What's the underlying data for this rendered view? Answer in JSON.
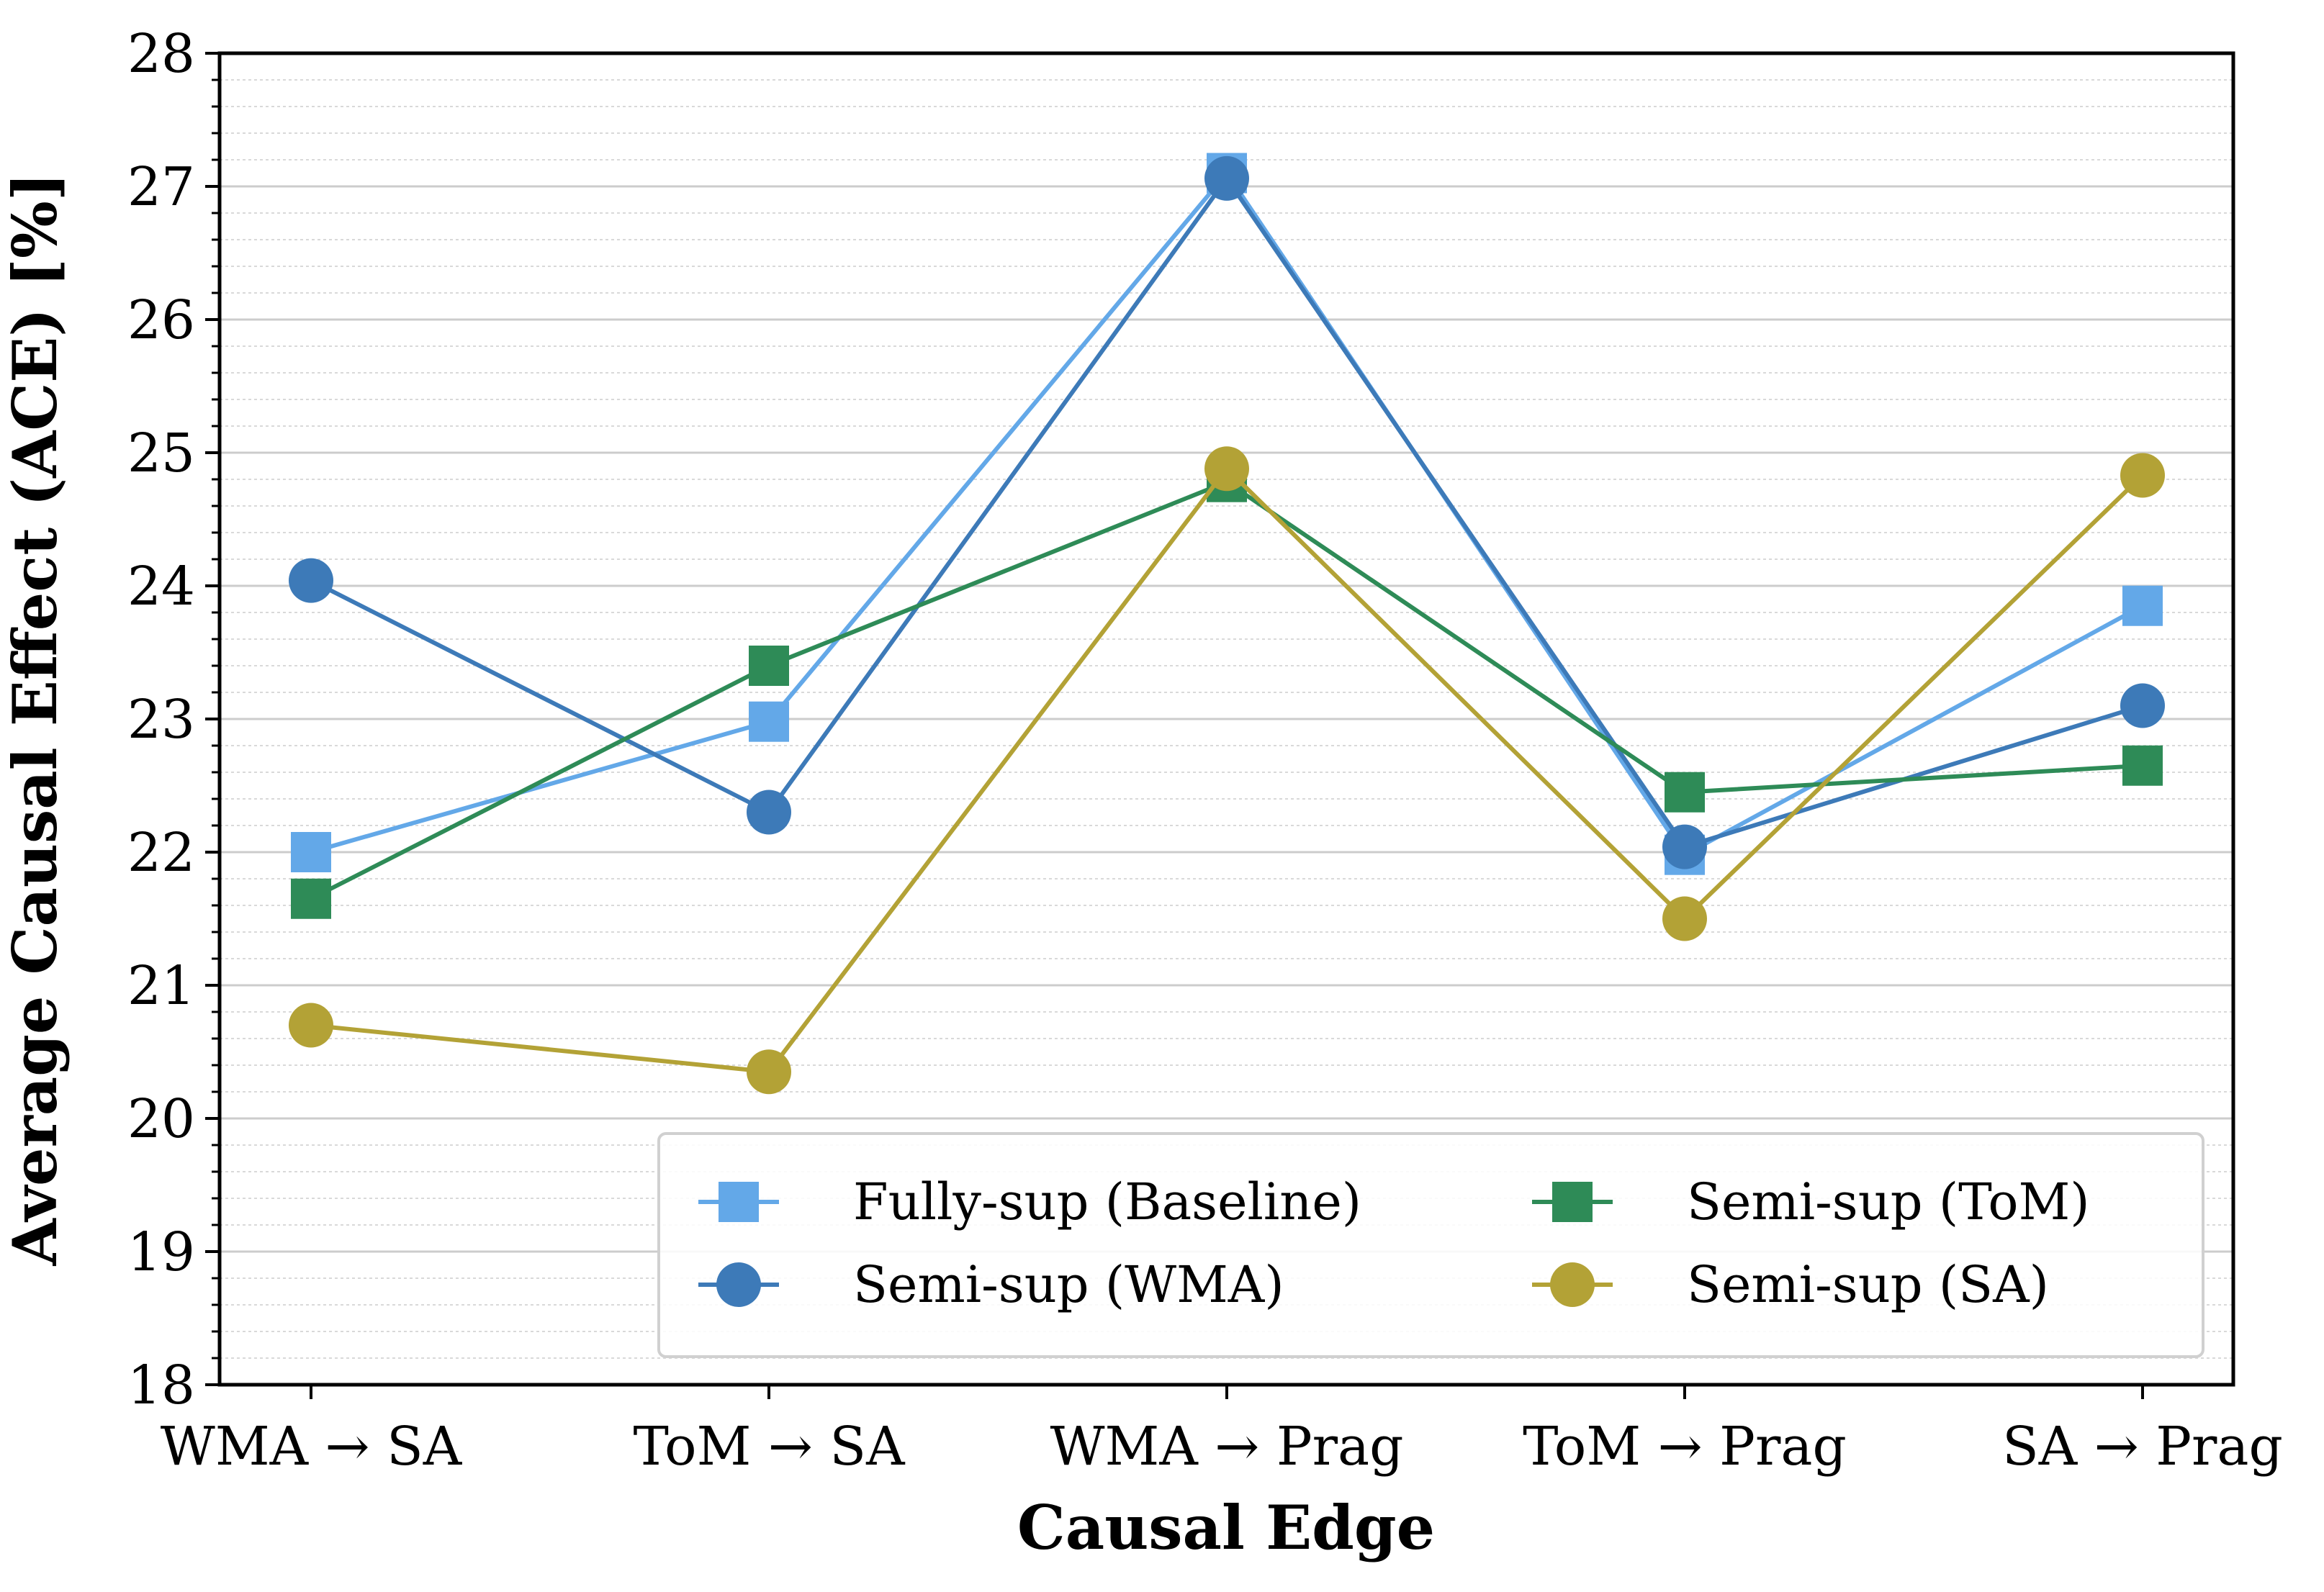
{
  "chart_data": {
    "type": "line",
    "title": "",
    "xlabel": "Causal Edge",
    "ylabel": "Average Causal Effect (ACE) [%]",
    "categories": [
      "WMA → SA",
      "ToM → SA",
      "WMA → Prag",
      "ToM → Prag",
      "SA → Prag"
    ],
    "ylim": [
      18,
      28
    ],
    "yticks": [
      18,
      19,
      20,
      21,
      22,
      23,
      24,
      25,
      26,
      27,
      28
    ],
    "grid": true,
    "legend_position": "lower-right",
    "legend_columns": 2,
    "series": [
      {
        "name": "Fully-sup (Baseline)",
        "marker": "square",
        "color": "#63a8e8",
        "values": [
          22.0,
          22.98,
          27.1,
          21.98,
          23.85
        ]
      },
      {
        "name": "Semi-sup (WMA)",
        "marker": "circle",
        "color": "#3d7ab8",
        "values": [
          24.04,
          22.3,
          27.06,
          22.04,
          23.1
        ]
      },
      {
        "name": "Semi-sup (ToM)",
        "marker": "square",
        "color": "#2e8b57",
        "values": [
          21.65,
          23.4,
          24.78,
          22.45,
          22.65
        ]
      },
      {
        "name": "Semi-sup (SA)",
        "marker": "circle",
        "color": "#b3a236",
        "values": [
          20.7,
          20.35,
          24.88,
          21.5,
          24.83
        ]
      }
    ]
  }
}
